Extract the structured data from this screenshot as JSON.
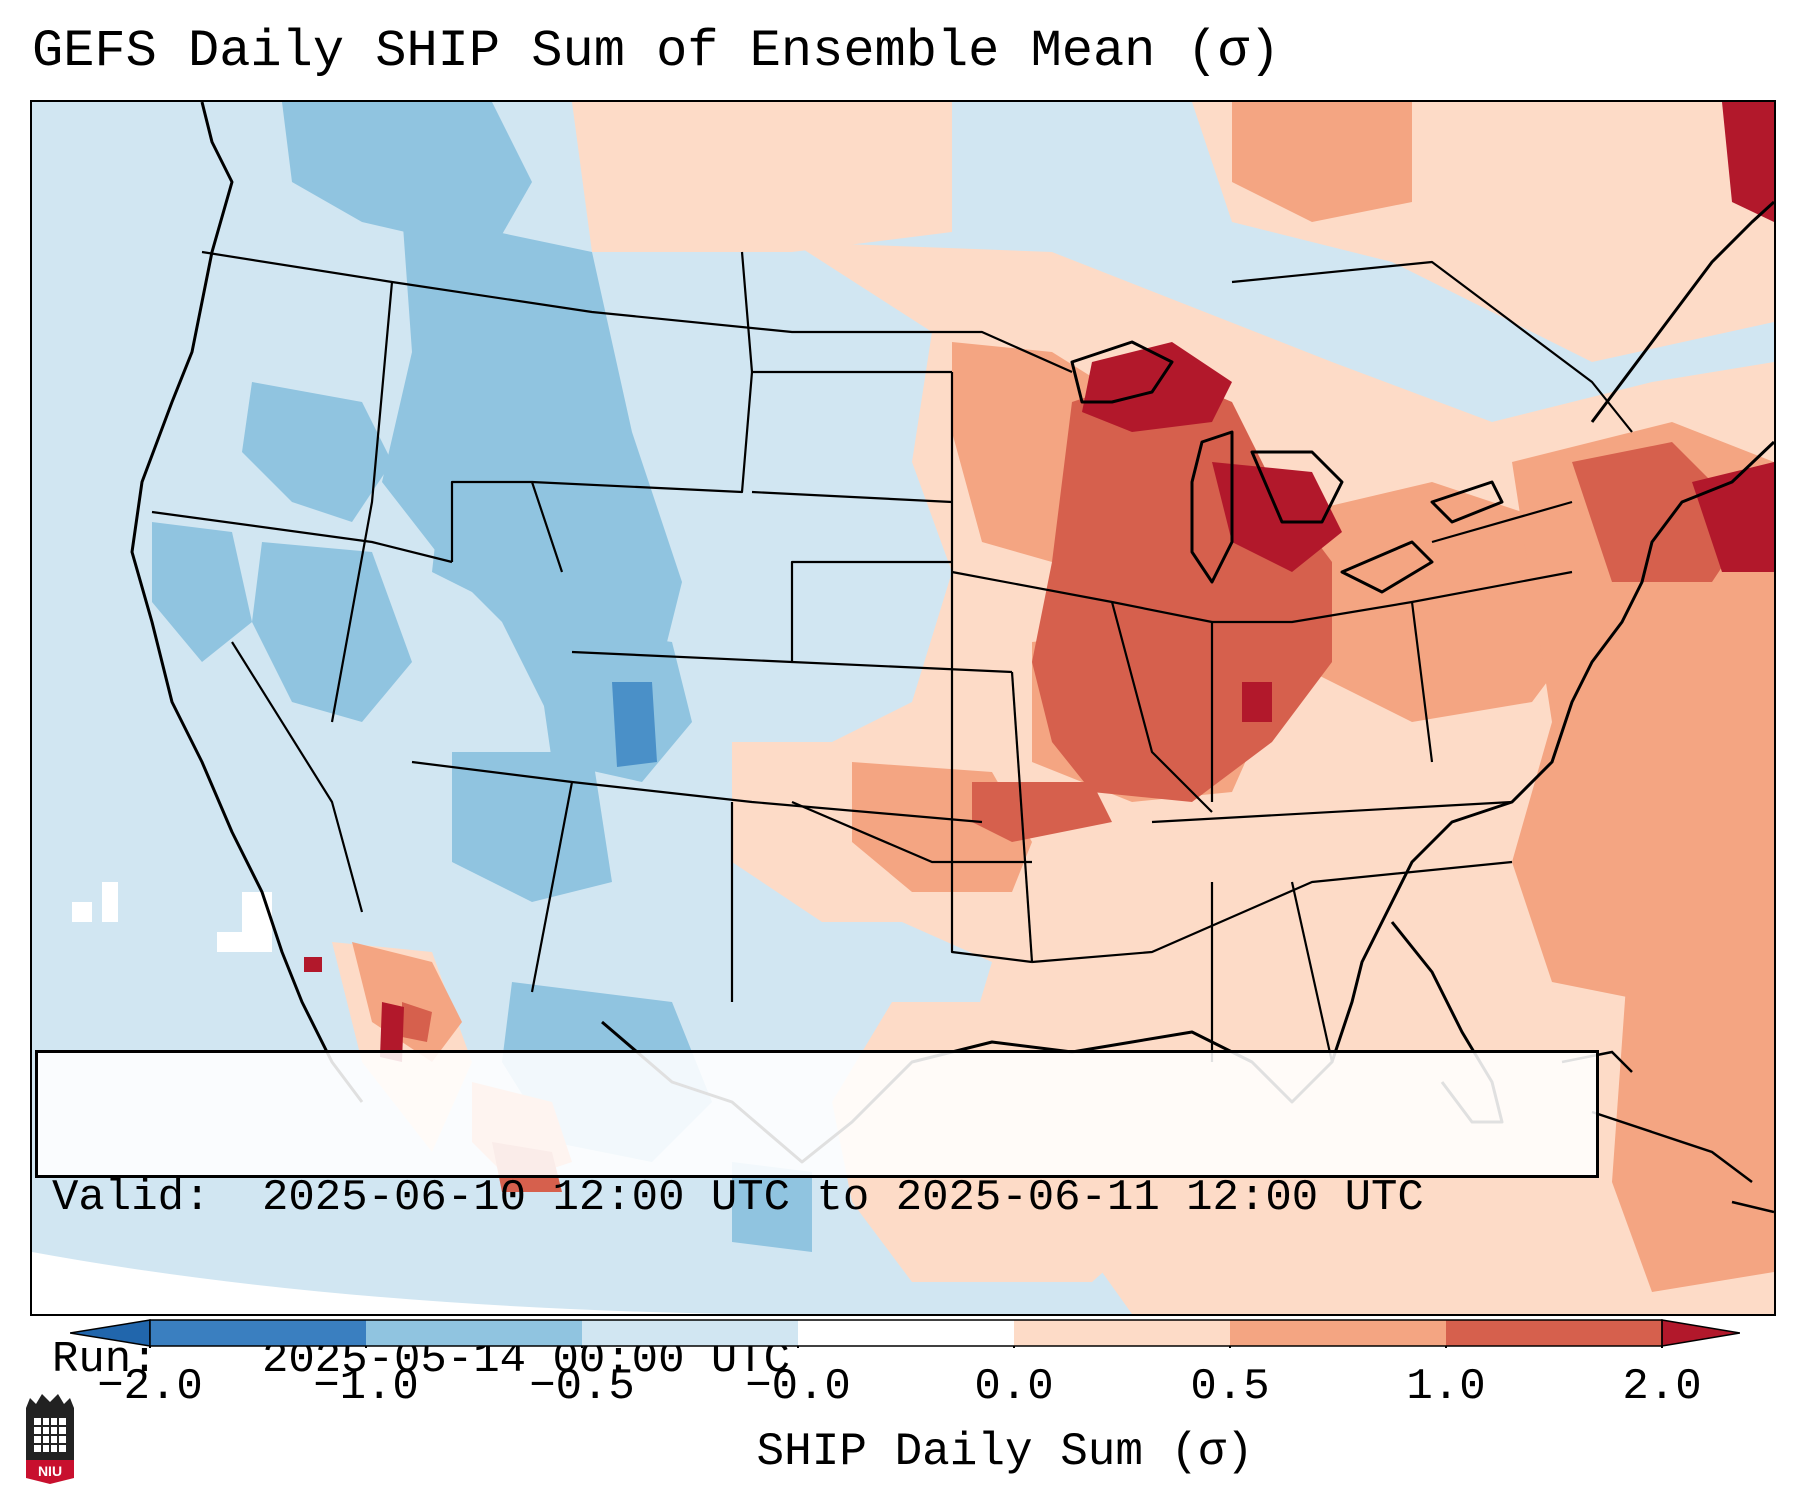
{
  "title": "GEFS Daily SHIP Sum of Ensemble Mean (σ)",
  "info": {
    "valid_label": "Valid:",
    "valid_value": "2025-06-10 12:00 UTC to 2025-06-11 12:00 UTC",
    "run_label": "Run:",
    "run_value": "2025-05-14 00:00 UTC"
  },
  "colorbar": {
    "label": "SHIP Daily Sum (σ)",
    "ticks": [
      "−2.0",
      "−1.0",
      "−0.5",
      "−0.0",
      "0.0",
      "0.5",
      "1.0",
      "2.0"
    ],
    "colors": [
      "#3a7fc0",
      "#90c4e0",
      "#d1e6f2",
      "#ffffff",
      "#fddbc7",
      "#f4a582",
      "#d6604d",
      "#b2182b"
    ]
  },
  "logo": {
    "name": "niu-logo",
    "text": "NIU"
  },
  "palette": {
    "strong_neg": "#3a7fc0",
    "neg": "#90c4e0",
    "weak_neg": "#d1e6f2",
    "weak_pos": "#fddbc7",
    "pos": "#f4a582",
    "strong_pos": "#d6604d",
    "max_pos": "#b2182b"
  }
}
